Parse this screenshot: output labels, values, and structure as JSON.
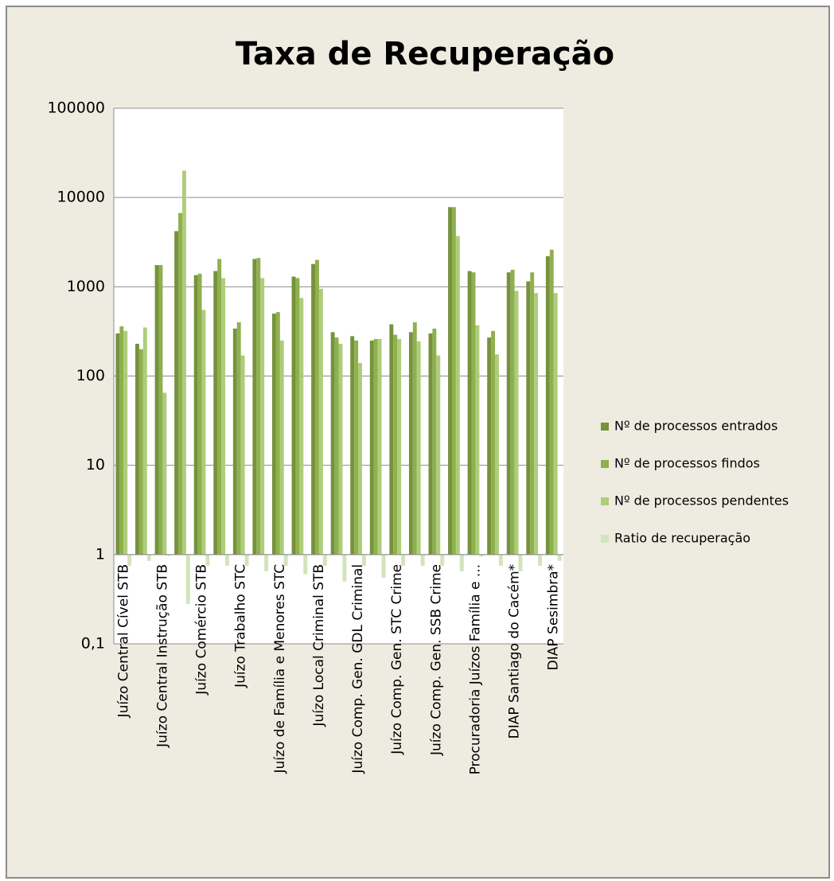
{
  "chart_data": {
    "type": "bar",
    "title": "Taxa de Recuperação",
    "categories": [
      "Juízo Central Cível STB",
      null,
      "Juízo Central Instrução STB",
      null,
      "Juízo Comércio STB",
      null,
      "Juízo Trabalho STC",
      null,
      "Juízo de Família e Menores STC",
      null,
      "Juízo Local Criminal STB",
      null,
      "Juízo Comp. Gen. GDL Criminal",
      null,
      "Juízo Comp. Gen. STC Crime",
      null,
      "Juízo Comp. Gen. SSB Crime",
      null,
      "Procuradoria Juízos Família e ...",
      null,
      "DIAP Santiago do Cacém*",
      null,
      "DIAP Sesimbra*"
    ],
    "series": [
      {
        "name": "Nº de processos entrados",
        "color": "#76923c",
        "values": [
          300,
          230,
          1750,
          4200,
          1350,
          1500,
          340,
          2050,
          500,
          1300,
          1800,
          310,
          280,
          250,
          380,
          310,
          300,
          7800,
          1500,
          270,
          1450,
          1150,
          2200
        ]
      },
      {
        "name": "Nº de processos findos",
        "color": "#8fb04e",
        "values": [
          360,
          200,
          1750,
          6700,
          1400,
          2050,
          400,
          2100,
          520,
          1250,
          2000,
          270,
          250,
          260,
          290,
          400,
          340,
          7800,
          1450,
          320,
          1550,
          1450,
          2600
        ]
      },
      {
        "name": "Nº de processos pendentes",
        "color": "#aecd7b",
        "values": [
          320,
          350,
          65,
          20000,
          550,
          1250,
          170,
          1250,
          250,
          750,
          950,
          230,
          140,
          260,
          260,
          245,
          170,
          3700,
          370,
          175,
          900,
          850,
          850
        ]
      },
      {
        "name": "Ratio de recuperação",
        "color": "#d3e3bb",
        "values": [
          0.75,
          0.85,
          0.97,
          0.28,
          0.75,
          0.75,
          0.75,
          0.65,
          0.75,
          0.6,
          0.75,
          0.5,
          0.75,
          0.55,
          0.75,
          0.75,
          0.75,
          0.65,
          0.95,
          0.75,
          0.65,
          0.75,
          0.85
        ]
      }
    ],
    "log_scale": true,
    "ylim": [
      0.1,
      100000
    ],
    "yticks": [
      {
        "value": 0.1,
        "label": "0,1"
      },
      1,
      10,
      100,
      1000,
      10000,
      100000
    ],
    "grid": true,
    "legend": "right"
  }
}
